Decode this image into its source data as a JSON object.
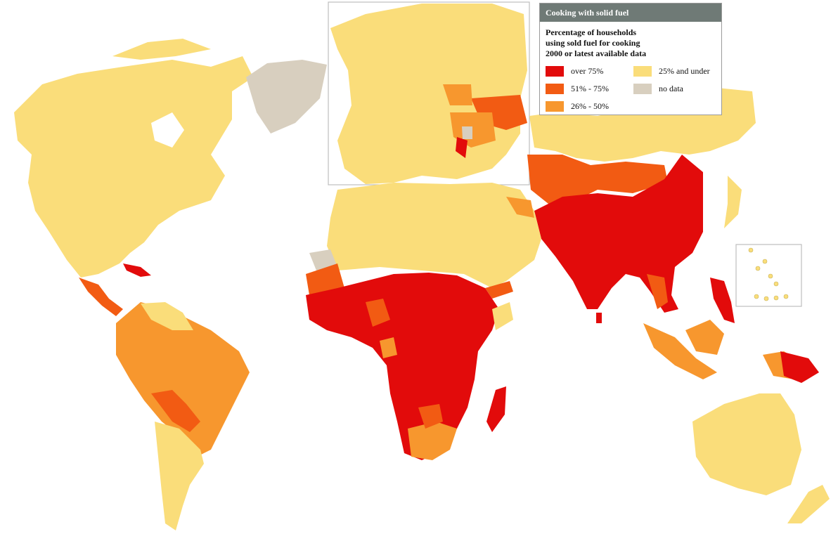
{
  "legend": {
    "title": "Cooking with solid fuel",
    "subtitle_lines": [
      "Percentage of households",
      "using sold fuel for cooking",
      "2000 or latest available data"
    ],
    "items": [
      {
        "label": "over 75%",
        "color": "#e20b0b"
      },
      {
        "label": "51% - 75%",
        "color": "#f25b13"
      },
      {
        "label": "26% - 50%",
        "color": "#f7972e"
      },
      {
        "label": "25% and under",
        "color": "#fadd7a"
      },
      {
        "label": "no data",
        "color": "#d8cfbf"
      }
    ]
  },
  "colors": {
    "background": "#ffffff",
    "inset_border": "#bdbdbd"
  }
}
